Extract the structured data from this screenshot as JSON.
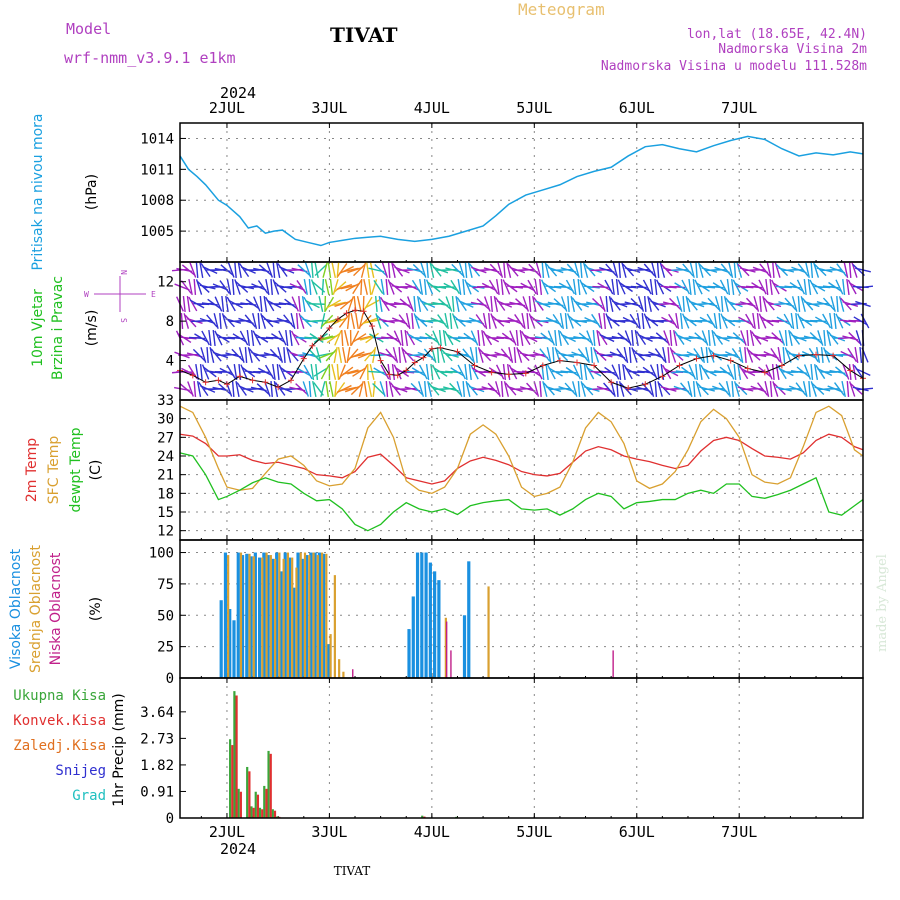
{
  "header": {
    "model_label": "Model",
    "model_name": "wrf-nmm_v3.9.1 e1km",
    "station": "TIVAT",
    "meteogram": "Meteogram",
    "lonlat": "lon,lat (18.65E, 42.4N)",
    "elevation": "Nadmorska Visina 2m",
    "model_elevation": "Nadmorska Visina u modelu 111.528m",
    "year": "2024",
    "footer_station": "TIVAT",
    "credit": "made by Angel"
  },
  "colors": {
    "pressure": "#1aa0e0",
    "temp2m": "#e03030",
    "sfc_temp": "#d9a030",
    "dewpoint": "#20c020",
    "high_cloud": "#1a90e0",
    "mid_cloud": "#d9a030",
    "low_cloud": "#c0208a",
    "total_rain": "#3aa63a",
    "conv_rain": "#e03030",
    "frozen_rain": "#e07020",
    "snow": "#3030d0",
    "graupel": "#20c0c0",
    "magenta": "#b040c0",
    "blue_label": "#1aa0e0"
  },
  "x_axis": {
    "days": [
      "2JUL",
      "3JUL",
      "4JUL",
      "5JUL",
      "6JUL",
      "7JUL"
    ],
    "range_hours": [
      -11,
      149
    ]
  },
  "wind_legend": {
    "n": "N",
    "s": "S",
    "w": "W",
    "e": "E"
  },
  "chart_data": [
    {
      "type": "line",
      "name": "pressure",
      "ylabel_lines": [
        "Pritisak na nivou mora",
        "(hPa)"
      ],
      "ylim": [
        1002,
        1015.5
      ],
      "yticks": [
        1005,
        1008,
        1011,
        1014
      ],
      "x": [
        -11,
        -9,
        -7,
        -5,
        -2,
        0,
        3,
        5,
        7,
        9,
        11,
        13,
        16,
        19,
        22,
        24,
        27,
        30,
        33,
        36,
        40,
        44,
        48,
        52,
        56,
        60,
        63,
        66,
        70,
        74,
        78,
        82,
        86,
        90,
        94,
        98,
        102,
        106,
        110,
        114,
        118,
        122,
        126,
        130,
        134,
        138,
        142,
        146,
        149
      ],
      "series": [
        {
          "values": [
            1012.3,
            1011,
            1010.3,
            1009.5,
            1008,
            1007.5,
            1006.4,
            1005.3,
            1005.5,
            1004.8,
            1005,
            1005.1,
            1004.2,
            1003.9,
            1003.6,
            1003.9,
            1004.1,
            1004.3,
            1004.4,
            1004.5,
            1004.2,
            1004.0,
            1004.2,
            1004.5,
            1005.0,
            1005.5,
            1006.5,
            1007.6,
            1008.5,
            1009.0,
            1009.5,
            1010.3,
            1010.8,
            1011.2,
            1012.3,
            1013.2,
            1013.4,
            1013.0,
            1012.7,
            1013.3,
            1013.8,
            1014.2,
            1013.9,
            1013.0,
            1012.3,
            1012.6,
            1012.4,
            1012.7,
            1012.5
          ]
        }
      ]
    },
    {
      "type": "line",
      "name": "wind",
      "ylabel_lines": [
        "10m Vjetar",
        "Brzina i Pravac",
        "(m/s)"
      ],
      "ylim": [
        0,
        14
      ],
      "yticks": [
        4,
        8,
        12
      ],
      "x": [
        -11,
        -8,
        -5,
        -2,
        0,
        3,
        6,
        9,
        12,
        15,
        18,
        20,
        22,
        24,
        26,
        28,
        30,
        32,
        34,
        36,
        38,
        40,
        42,
        44,
        46,
        48,
        50,
        54,
        58,
        62,
        66,
        70,
        74,
        78,
        82,
        86,
        90,
        94,
        98,
        102,
        106,
        110,
        114,
        118,
        122,
        126,
        130,
        134,
        138,
        142,
        146,
        149
      ],
      "series": [
        {
          "values": [
            3,
            2.5,
            1.8,
            2.0,
            1.6,
            2.4,
            2.0,
            1.8,
            1.3,
            2.0,
            4.2,
            5.5,
            6.3,
            7.3,
            8.2,
            8.8,
            9.1,
            9.0,
            7.5,
            4.0,
            2.6,
            2.5,
            3.0,
            3.8,
            4.3,
            5.2,
            5.3,
            4.9,
            3.5,
            2.8,
            2.6,
            2.7,
            3.5,
            4.0,
            3.8,
            3.5,
            1.8,
            1.2,
            1.6,
            2.4,
            3.5,
            4.2,
            4.5,
            4.0,
            3.2,
            2.8,
            3.5,
            4.5,
            4.6,
            4.5,
            3.0,
            2.2
          ]
        }
      ]
    },
    {
      "type": "line",
      "name": "temperature",
      "ylabel_lines": [
        "2m Temp",
        "SFC Temp",
        "dewpt Temp",
        "(C)"
      ],
      "ylim": [
        10.5,
        33
      ],
      "yticks": [
        12,
        15,
        18,
        21,
        24,
        27,
        30,
        33
      ],
      "x": [
        -11,
        -8,
        -5,
        -2,
        0,
        3,
        6,
        9,
        12,
        15,
        18,
        21,
        24,
        27,
        30,
        33,
        36,
        39,
        42,
        45,
        48,
        51,
        54,
        57,
        60,
        63,
        66,
        69,
        72,
        75,
        78,
        81,
        84,
        87,
        90,
        93,
        96,
        99,
        102,
        105,
        108,
        111,
        114,
        117,
        120,
        123,
        126,
        129,
        132,
        135,
        138,
        141,
        144,
        147,
        149
      ],
      "series": [
        {
          "name": "2m Temp",
          "values": [
            27.5,
            27.2,
            26,
            24,
            24,
            24.2,
            23.3,
            22.8,
            23,
            22.5,
            22,
            21,
            20.8,
            20.5,
            21.5,
            23.8,
            24.3,
            22.5,
            20.5,
            20,
            19.5,
            20,
            22,
            23.2,
            23.8,
            23.3,
            22.6,
            21.5,
            21,
            20.8,
            21.2,
            23.0,
            24.8,
            25.5,
            25,
            24,
            23.5,
            23.1,
            22.5,
            22,
            22.5,
            24.8,
            26.5,
            27.0,
            26.5,
            25.2,
            24.0,
            23.8,
            23.5,
            24.5,
            26.5,
            27.5,
            27.0,
            25.5,
            25.0
          ]
        },
        {
          "name": "SFC Temp",
          "values": [
            32,
            31,
            27,
            22,
            19,
            18.5,
            18.8,
            21.2,
            23.5,
            24,
            22.5,
            20,
            19.2,
            19.5,
            22,
            28.5,
            31,
            27,
            20,
            18.5,
            18,
            19,
            22,
            27.5,
            29,
            27.5,
            24,
            19,
            17.5,
            18,
            19,
            23,
            28.5,
            31,
            29.5,
            26,
            20,
            18.8,
            19.5,
            21.5,
            25,
            29.5,
            31.5,
            30.0,
            27,
            21,
            19.8,
            19.5,
            20.5,
            25.5,
            31,
            32,
            30.5,
            25,
            24
          ]
        },
        {
          "name": "dewpt Temp",
          "values": [
            24.5,
            24,
            21,
            17,
            17.5,
            18.5,
            19.7,
            20.5,
            19.8,
            19.5,
            18,
            16.8,
            17,
            15.5,
            13,
            12,
            13,
            15,
            16.5,
            15.5,
            15,
            15.5,
            14.6,
            16,
            16.5,
            16.8,
            17,
            15.5,
            15.3,
            15.5,
            14.5,
            15.5,
            17,
            18,
            17.5,
            15.5,
            16.5,
            16.7,
            17,
            17,
            18,
            18.5,
            18,
            19.5,
            19.5,
            17.5,
            17.2,
            17.8,
            18.5,
            19.5,
            20.5,
            15,
            14.5,
            16,
            17
          ]
        }
      ]
    },
    {
      "type": "bar",
      "name": "cloud",
      "ylabel_lines": [
        "Visoka Oblacnost",
        "Srednja Oblacnost",
        "Niska Oblacnost",
        "(%)"
      ],
      "ylim": [
        0,
        110
      ],
      "yticks": [
        0,
        25,
        50,
        75,
        100
      ],
      "series": [
        {
          "name": "Visoka Oblacnost",
          "x": [
            -1,
            0,
            1,
            2,
            3,
            4,
            5,
            6,
            7,
            8,
            9,
            10,
            11,
            12,
            13,
            14,
            15,
            16,
            17,
            18,
            19,
            20,
            21,
            22,
            23,
            24,
            43,
            44,
            45,
            46,
            47,
            48,
            49,
            50,
            56,
            57
          ],
          "values": [
            62,
            100,
            55,
            46,
            100,
            98,
            99,
            97,
            100,
            96,
            100,
            98,
            95,
            100,
            85,
            100,
            96,
            72,
            100,
            95,
            98,
            100,
            100,
            100,
            99,
            27,
            39,
            65,
            100,
            100,
            100,
            92,
            85,
            78,
            50,
            93
          ]
        },
        {
          "name": "Srednja Oblacnost",
          "x": [
            0,
            3,
            5,
            6,
            8,
            9,
            10,
            11,
            12,
            13,
            14,
            15,
            16,
            17,
            18,
            19,
            20,
            21,
            22,
            23,
            24,
            25,
            26,
            27,
            51,
            61
          ],
          "values": [
            98,
            100,
            99,
            97,
            96,
            100,
            98,
            95,
            100,
            95,
            100,
            96,
            88,
            100,
            100,
            98,
            100,
            98,
            100,
            99,
            35,
            82,
            15,
            5,
            48,
            73
          ]
        },
        {
          "name": "Niska Oblacnost",
          "x": [
            29,
            51,
            52,
            90
          ],
          "values": [
            7,
            45,
            22,
            22
          ]
        }
      ]
    },
    {
      "type": "bar",
      "name": "precip",
      "ylabel_lines": [
        "1hr Precip (mm)"
      ],
      "legend": [
        "Ukupna Kisa",
        "Konvek.Kisa",
        "Zaledj.Kisa",
        "Snijeg",
        "Grad"
      ],
      "ylim": [
        0,
        4.8
      ],
      "yticks": [
        0,
        0.91,
        1.82,
        2.73,
        3.64
      ],
      "yticklabels": [
        "0",
        "0.91",
        "1.82",
        "2.73",
        "3.64"
      ],
      "x": [
        1,
        2,
        3,
        5,
        6,
        7,
        8,
        9,
        10,
        11,
        12,
        46,
        54
      ],
      "series": [
        {
          "name": "Ukupna Kisa",
          "values": [
            2.7,
            4.35,
            1.0,
            1.75,
            0.4,
            0.9,
            0.35,
            1.1,
            2.3,
            0.3,
            0.05,
            0.08,
            0.04
          ]
        },
        {
          "name": "Konvek.Kisa",
          "values": [
            2.5,
            4.2,
            0.9,
            1.6,
            0.35,
            0.8,
            0.3,
            1.0,
            2.2,
            0.25,
            0.04,
            0.05,
            0.02
          ]
        }
      ]
    }
  ]
}
